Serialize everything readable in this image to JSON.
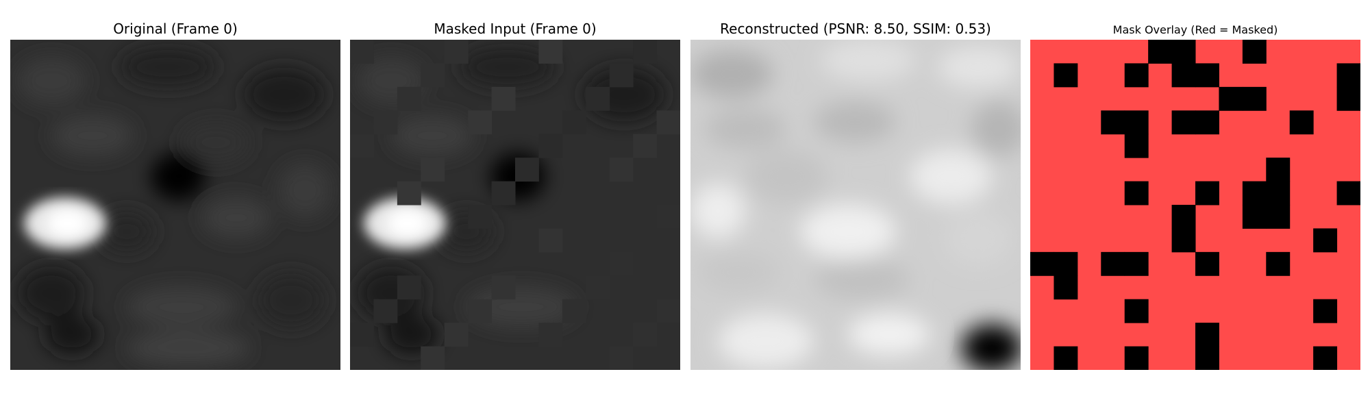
{
  "figure": {
    "panels": [
      {
        "title": "Original (Frame 0)"
      },
      {
        "title": "Masked Input (Frame 0)"
      },
      {
        "title": "Reconstructed (PSNR: 8.50, SSIM: 0.53)"
      },
      {
        "title": "Mask Overlay (Red = Masked)"
      }
    ]
  },
  "mask": {
    "grid_size": 14,
    "overlay_color": "#ff4b4b",
    "visible_color": "#000000",
    "visible_patches": [
      [
        0,
        5
      ],
      [
        0,
        6
      ],
      [
        0,
        9
      ],
      [
        1,
        1
      ],
      [
        1,
        4
      ],
      [
        1,
        6
      ],
      [
        1,
        7
      ],
      [
        1,
        13
      ],
      [
        2,
        8
      ],
      [
        2,
        9
      ],
      [
        2,
        13
      ],
      [
        3,
        3
      ],
      [
        3,
        4
      ],
      [
        3,
        6
      ],
      [
        3,
        7
      ],
      [
        3,
        11
      ],
      [
        4,
        4
      ],
      [
        5,
        10
      ],
      [
        6,
        4
      ],
      [
        6,
        7
      ],
      [
        6,
        9
      ],
      [
        6,
        10
      ],
      [
        6,
        13
      ],
      [
        7,
        6
      ],
      [
        7,
        9
      ],
      [
        7,
        10
      ],
      [
        8,
        6
      ],
      [
        8,
        12
      ],
      [
        9,
        0
      ],
      [
        9,
        1
      ],
      [
        9,
        3
      ],
      [
        9,
        4
      ],
      [
        9,
        7
      ],
      [
        9,
        10
      ],
      [
        10,
        1
      ],
      [
        11,
        4
      ],
      [
        11,
        12
      ],
      [
        12,
        7
      ],
      [
        13,
        1
      ],
      [
        13,
        4
      ],
      [
        13,
        7
      ],
      [
        13,
        12
      ]
    ]
  }
}
